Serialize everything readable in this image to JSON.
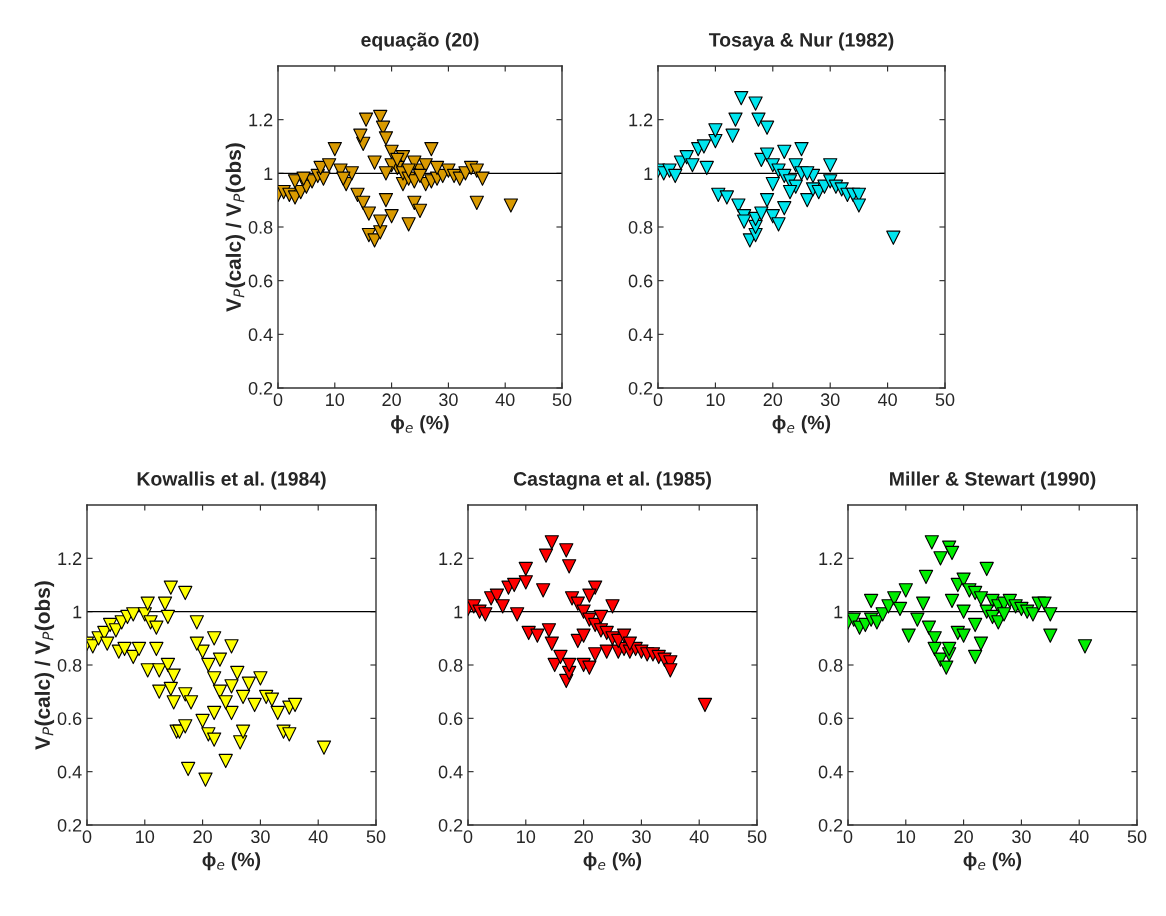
{
  "chart_data": [
    {
      "type": "scatter",
      "title": "equação (20)",
      "xlabel": "ϕ$_{e}$ (%)",
      "ylabel": "V$_{P}$(calc) / V$_{P}$(obs)",
      "xlim": [
        0,
        50
      ],
      "ylim": [
        0.2,
        1.4
      ],
      "xticks": [
        0,
        10,
        20,
        30,
        40,
        50
      ],
      "yticks": [
        0.2,
        0.4,
        0.6,
        0.8,
        1,
        1.2
      ],
      "marker": "triangle",
      "ref_lines": [
        {
          "axis": "y",
          "value": 1,
          "color": "#000000"
        }
      ],
      "series": [
        {
          "color": "#d99a00",
          "x": [
            0,
            1,
            2,
            3,
            4,
            5,
            6,
            7,
            8,
            7.5,
            9,
            10,
            11,
            12,
            14,
            15,
            15,
            15.5,
            14.5,
            16,
            16,
            17,
            18,
            18,
            18,
            18.5,
            19,
            20,
            19,
            20,
            22,
            22,
            23,
            24,
            25,
            25,
            27,
            26,
            24,
            21,
            22,
            23,
            24,
            26,
            27,
            28,
            29,
            30,
            31,
            32,
            33,
            34,
            35,
            36,
            35,
            41,
            20,
            21,
            23,
            25,
            28,
            17,
            19,
            13,
            11.5,
            3,
            4.5
          ],
          "values": [
            0.92,
            0.93,
            0.92,
            0.91,
            0.93,
            0.95,
            0.97,
            0.99,
            0.98,
            1.02,
            1.03,
            1.09,
            1.01,
            0.96,
            0.92,
            0.89,
            1.11,
            1.2,
            1.14,
            0.85,
            0.77,
            0.75,
            0.78,
            0.82,
            1.21,
            1.17,
            0.9,
            0.84,
            1.13,
            1.08,
            1.06,
            0.96,
            0.81,
            0.89,
            0.86,
            1.01,
            1.09,
            1.03,
            1.04,
            1.02,
            1.0,
            0.98,
            0.97,
            0.96,
            0.97,
            0.98,
            0.99,
            1.01,
            0.99,
            0.98,
            1.0,
            1.02,
            1.01,
            0.98,
            0.89,
            0.88,
            1.03,
            1.05,
            1.01,
            0.99,
            1.02,
            1.04,
            1.0,
            1.0,
            0.98,
            0.97,
            0.98
          ]
        }
      ]
    },
    {
      "type": "scatter",
      "title": "Tosaya & Nur (1982)",
      "xlabel": "ϕ$_{e}$ (%)",
      "xlim": [
        0,
        50
      ],
      "ylim": [
        0.2,
        1.4
      ],
      "xticks": [
        0,
        10,
        20,
        30,
        40,
        50
      ],
      "yticks": [
        0.2,
        0.4,
        0.6,
        0.8,
        1,
        1.2
      ],
      "marker": "triangle",
      "ref_lines": [
        {
          "axis": "y",
          "value": 1,
          "color": "#000000"
        }
      ],
      "series": [
        {
          "color": "#00e5ee",
          "x": [
            0,
            1,
            2,
            3,
            4,
            5,
            6,
            7,
            8,
            8.5,
            10,
            10,
            10.5,
            12,
            13,
            13.5,
            14,
            14.5,
            15,
            15,
            30,
            16,
            17,
            17,
            17,
            17,
            17.5,
            18,
            19,
            19,
            20,
            21,
            22,
            22,
            24,
            25,
            26,
            27,
            28,
            29,
            30,
            31,
            32,
            33,
            34,
            35,
            35,
            41,
            18,
            19,
            20,
            21,
            22,
            23,
            24,
            25,
            27,
            20,
            23,
            26
          ],
          "values": [
            1.01,
            1.0,
            1.01,
            0.99,
            1.04,
            1.06,
            1.03,
            1.09,
            1.1,
            1.02,
            1.12,
            1.16,
            0.92,
            0.91,
            1.14,
            1.2,
            0.88,
            1.28,
            0.84,
            0.82,
            1.03,
            0.75,
            0.77,
            0.8,
            0.83,
            1.26,
            1.2,
            0.85,
            1.17,
            0.9,
            0.84,
            0.81,
            0.87,
            1.08,
            1.03,
            1.09,
            0.9,
            0.94,
            0.93,
            0.95,
            0.97,
            0.95,
            0.94,
            0.92,
            0.92,
            0.92,
            0.88,
            0.76,
            1.05,
            1.07,
            1.03,
            1.01,
            0.99,
            0.97,
            0.95,
            1.0,
            0.99,
            0.96,
            0.93,
            1.0
          ]
        }
      ]
    },
    {
      "type": "scatter",
      "title": "Kowallis et al. (1984)",
      "xlabel": "ϕ$_{e}$ (%)",
      "ylabel": "V$_{P}$(calc) / V$_{P}$(obs)",
      "xlim": [
        0,
        50
      ],
      "ylim": [
        0.2,
        1.4
      ],
      "xticks": [
        0,
        10,
        20,
        30,
        40,
        50
      ],
      "yticks": [
        0.2,
        0.4,
        0.6,
        0.8,
        1,
        1.2
      ],
      "marker": "triangle",
      "ref_lines": [
        {
          "axis": "y",
          "value": 1,
          "color": "#000000"
        }
      ],
      "series": [
        {
          "color": "#ffff00",
          "x": [
            0,
            1,
            2,
            3,
            3.5,
            4,
            5,
            5.5,
            6,
            6.5,
            7,
            8,
            8,
            9,
            10,
            10.5,
            11,
            10.5,
            12,
            12,
            12.5,
            12.5,
            13.5,
            14,
            14,
            14.5,
            14.5,
            15,
            15,
            15.5,
            16,
            17,
            17,
            17,
            17.5,
            18,
            19,
            20,
            20.5,
            21,
            22,
            22,
            23,
            24,
            25,
            25,
            26,
            26.5,
            27,
            28,
            29,
            30,
            31,
            32,
            33,
            34,
            35,
            36,
            35,
            41,
            20,
            21,
            22,
            23,
            24,
            25,
            27,
            19,
            22
          ],
          "values": [
            0.88,
            0.87,
            0.9,
            0.92,
            0.88,
            0.95,
            0.93,
            0.85,
            0.96,
            0.86,
            0.98,
            0.99,
            0.83,
            0.86,
            0.99,
            1.03,
            0.96,
            0.78,
            0.94,
            0.86,
            0.78,
            0.7,
            1.03,
            0.98,
            0.8,
            0.71,
            1.09,
            0.66,
            0.76,
            0.55,
            0.55,
            0.57,
            1.07,
            0.69,
            0.41,
            0.66,
            0.96,
            0.59,
            0.37,
            0.54,
            0.52,
            0.9,
            0.82,
            0.44,
            0.87,
            0.62,
            0.77,
            0.51,
            0.55,
            0.73,
            0.65,
            0.75,
            0.68,
            0.67,
            0.62,
            0.55,
            0.64,
            0.65,
            0.54,
            0.49,
            0.85,
            0.8,
            0.75,
            0.7,
            0.66,
            0.72,
            0.68,
            0.88,
            0.62
          ]
        }
      ]
    },
    {
      "type": "scatter",
      "title": "Castagna et al. (1985)",
      "xlabel": "ϕ$_{e}$ (%)",
      "xlim": [
        0,
        50
      ],
      "ylim": [
        0.2,
        1.4
      ],
      "xticks": [
        0,
        10,
        20,
        30,
        40,
        50
      ],
      "yticks": [
        0.2,
        0.4,
        0.6,
        0.8,
        1,
        1.2
      ],
      "marker": "triangle",
      "ref_lines": [
        {
          "axis": "y",
          "value": 1,
          "color": "#000000"
        }
      ],
      "series": [
        {
          "color": "#ff0000",
          "x": [
            0,
            1,
            2,
            3,
            4,
            5,
            6,
            7,
            8,
            8.5,
            10,
            10,
            10.5,
            12,
            13,
            13.5,
            14,
            14.5,
            14.5,
            15,
            16,
            17,
            17.5,
            17.5,
            17,
            17.5,
            19,
            20,
            21,
            22,
            22,
            24,
            25,
            26,
            27,
            28,
            29,
            30,
            31,
            32,
            33,
            34,
            35,
            35,
            41,
            18,
            19,
            20,
            21,
            22,
            23,
            24,
            25,
            26,
            27,
            20,
            23,
            21,
            28
          ],
          "values": [
            1.01,
            1.02,
            1.0,
            0.99,
            1.05,
            1.06,
            1.02,
            1.09,
            1.1,
            0.99,
            1.11,
            1.16,
            0.92,
            0.91,
            1.08,
            1.21,
            0.93,
            1.26,
            0.88,
            0.8,
            0.83,
            0.74,
            0.77,
            0.8,
            1.23,
            1.17,
            0.89,
            0.8,
            0.79,
            0.84,
            1.09,
            0.85,
            1.02,
            0.85,
            0.86,
            0.85,
            0.86,
            0.85,
            0.84,
            0.84,
            0.83,
            0.82,
            0.81,
            0.78,
            0.65,
            1.05,
            1.03,
            1.0,
            0.97,
            0.95,
            0.93,
            0.92,
            0.9,
            0.89,
            0.91,
            0.91,
            0.98,
            1.06,
            0.88
          ]
        }
      ]
    },
    {
      "type": "scatter",
      "title": "Miller & Stewart (1990)",
      "xlabel": "ϕ$_{e}$ (%)",
      "xlim": [
        0,
        50
      ],
      "ylim": [
        0.2,
        1.4
      ],
      "xticks": [
        0,
        10,
        20,
        30,
        40,
        50
      ],
      "yticks": [
        0.2,
        0.4,
        0.6,
        0.8,
        1,
        1.2
      ],
      "marker": "triangle",
      "ref_lines": [
        {
          "axis": "y",
          "value": 1,
          "color": "#000000"
        }
      ],
      "series": [
        {
          "color": "#00ee00",
          "x": [
            0,
            1,
            2,
            3,
            4,
            4,
            5,
            6,
            7,
            8,
            9,
            10,
            10.5,
            12,
            13,
            13.5,
            14,
            14.5,
            15,
            15,
            16,
            17,
            17.5,
            17.5,
            17.5,
            18,
            16,
            19,
            20,
            22,
            23,
            24,
            25,
            26,
            27,
            28,
            29,
            30,
            31,
            32,
            33,
            34,
            35,
            35,
            41,
            19,
            20,
            21,
            22,
            23,
            24,
            25,
            26,
            27,
            20,
            22,
            18
          ],
          "values": [
            0.96,
            0.97,
            0.94,
            0.95,
            0.97,
            1.04,
            0.96,
            0.99,
            1.02,
            1.05,
            1.01,
            1.08,
            0.91,
            0.97,
            1.03,
            1.13,
            0.94,
            1.26,
            0.9,
            0.86,
            0.82,
            0.79,
            0.84,
            0.86,
            1.24,
            1.22,
            1.2,
            0.92,
            0.91,
            0.83,
            0.88,
            1.16,
            1.04,
            1.02,
            1.03,
            1.04,
            1.02,
            1.01,
            1.0,
            0.99,
            1.03,
            1.03,
            0.99,
            0.91,
            0.87,
            1.1,
            1.12,
            1.08,
            1.07,
            1.05,
            1.0,
            0.98,
            0.96,
            0.99,
            1.0,
            0.95,
            1.04
          ]
        }
      ]
    }
  ]
}
